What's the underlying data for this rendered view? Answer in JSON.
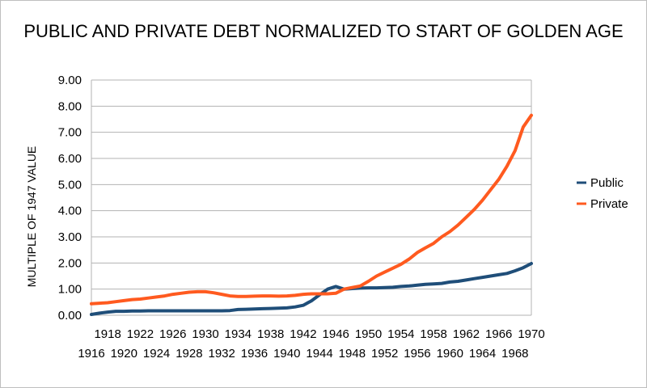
{
  "chart_data": {
    "type": "line",
    "title": "PUBLIC AND PRIVATE DEBT NORMALIZED TO START OF GOLDEN AGE",
    "xlabel": "",
    "ylabel": "MULTIPLE OF 1947 VALUE",
    "ylim": [
      0,
      9
    ],
    "yticks": [
      "0.00",
      "1.00",
      "2.00",
      "3.00",
      "4.00",
      "5.00",
      "6.00",
      "7.00",
      "8.00",
      "9.00"
    ],
    "x_ticks_lower": [
      "1916",
      "1920",
      "1924",
      "1928",
      "1932",
      "1936",
      "1940",
      "1944",
      "1948",
      "1952",
      "1956",
      "1960",
      "1964",
      "1968"
    ],
    "x_ticks_upper": [
      "1918",
      "1922",
      "1926",
      "1930",
      "1934",
      "1938",
      "1942",
      "1946",
      "1950",
      "1954",
      "1958",
      "1962",
      "1966",
      "1970"
    ],
    "xlim": [
      1916,
      1970
    ],
    "grid": true,
    "legend_position": "right",
    "x": [
      1916,
      1917,
      1918,
      1919,
      1920,
      1921,
      1922,
      1923,
      1924,
      1925,
      1926,
      1927,
      1928,
      1929,
      1930,
      1931,
      1932,
      1933,
      1934,
      1935,
      1936,
      1937,
      1938,
      1939,
      1940,
      1941,
      1942,
      1943,
      1944,
      1945,
      1946,
      1947,
      1948,
      1949,
      1950,
      1951,
      1952,
      1953,
      1954,
      1955,
      1956,
      1957,
      1958,
      1959,
      1960,
      1961,
      1962,
      1963,
      1964,
      1965,
      1966,
      1967,
      1968,
      1969,
      1970
    ],
    "series": [
      {
        "name": "Public",
        "color": "#1f4e79",
        "values": [
          0.03,
          0.08,
          0.12,
          0.15,
          0.15,
          0.16,
          0.16,
          0.17,
          0.17,
          0.17,
          0.17,
          0.17,
          0.17,
          0.17,
          0.17,
          0.17,
          0.17,
          0.18,
          0.22,
          0.23,
          0.24,
          0.25,
          0.26,
          0.27,
          0.28,
          0.32,
          0.38,
          0.55,
          0.78,
          1.0,
          1.1,
          1.0,
          1.02,
          1.04,
          1.05,
          1.05,
          1.06,
          1.07,
          1.1,
          1.12,
          1.15,
          1.18,
          1.2,
          1.22,
          1.27,
          1.3,
          1.35,
          1.4,
          1.45,
          1.5,
          1.55,
          1.6,
          1.7,
          1.82,
          1.98
        ]
      },
      {
        "name": "Private",
        "color": "#ff5a1f",
        "values": [
          0.44,
          0.46,
          0.48,
          0.52,
          0.56,
          0.6,
          0.62,
          0.66,
          0.7,
          0.74,
          0.8,
          0.84,
          0.88,
          0.9,
          0.9,
          0.86,
          0.8,
          0.74,
          0.72,
          0.72,
          0.73,
          0.74,
          0.74,
          0.73,
          0.74,
          0.76,
          0.8,
          0.82,
          0.82,
          0.82,
          0.84,
          1.0,
          1.06,
          1.12,
          1.3,
          1.5,
          1.65,
          1.8,
          1.95,
          2.15,
          2.4,
          2.58,
          2.75,
          3.0,
          3.2,
          3.45,
          3.75,
          4.05,
          4.4,
          4.8,
          5.2,
          5.7,
          6.3,
          7.2,
          7.65
        ]
      }
    ]
  }
}
